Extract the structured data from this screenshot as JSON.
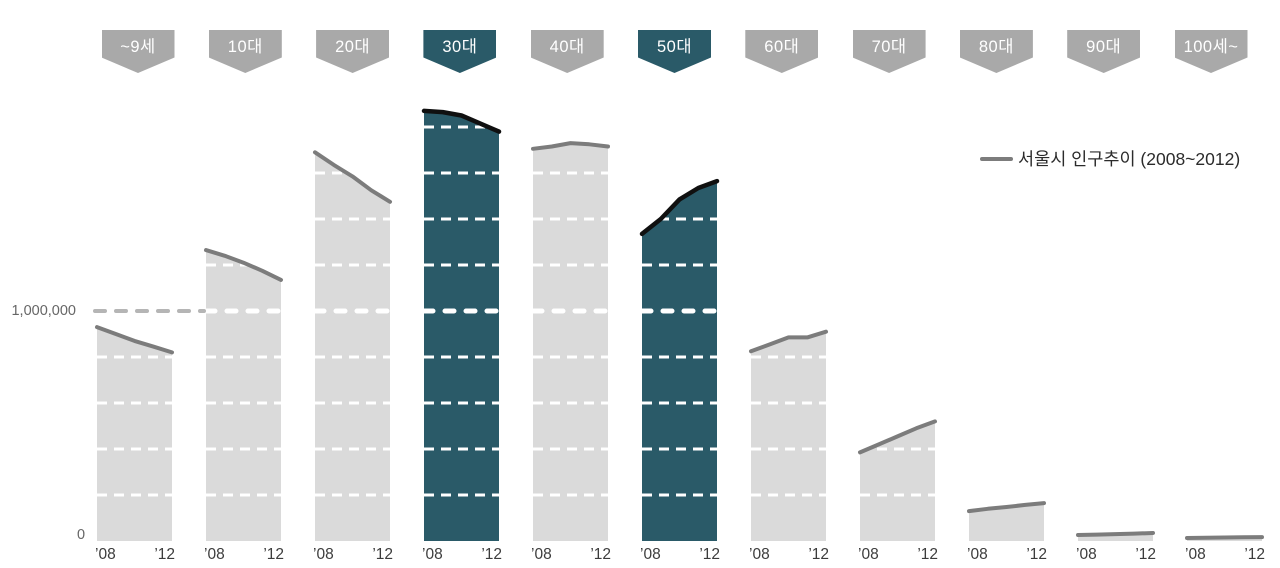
{
  "legend": {
    "label": "서울시 인구추이 (2008~2012)"
  },
  "y_axis": {
    "million_label": "1,000,000",
    "zero_label": "0"
  },
  "x_axis": {
    "first_tick": "’08",
    "last_tick": "’12"
  },
  "chart_data": {
    "type": "area",
    "title": "서울시 인구추이 (2008~2012)",
    "x": [
      "2008",
      "2009",
      "2010",
      "2011",
      "2012"
    ],
    "x_tick_labels_shown": [
      "’08",
      "’12"
    ],
    "y_tick_labels_shown": [
      "0",
      "1,000,000"
    ],
    "ylim": [
      0,
      1900000
    ],
    "gridline_interval": 200000,
    "emphasized_gridline": 1000000,
    "grid": "white dashed lines inside bars only; gray dashed 1,000,000 reference at far left",
    "legend_position": "right, above 60대 bar",
    "series": [
      {
        "name": "~9세",
        "highlighted": false,
        "values": [
          930000,
          900000,
          870000,
          845000,
          820000
        ]
      },
      {
        "name": "10대",
        "highlighted": false,
        "values": [
          1265000,
          1240000,
          1210000,
          1175000,
          1135000
        ]
      },
      {
        "name": "20대",
        "highlighted": false,
        "values": [
          1690000,
          1635000,
          1585000,
          1525000,
          1475000
        ]
      },
      {
        "name": "30대",
        "highlighted": true,
        "values": [
          1870000,
          1865000,
          1850000,
          1815000,
          1780000
        ]
      },
      {
        "name": "40대",
        "highlighted": false,
        "values": [
          1705000,
          1715000,
          1730000,
          1725000,
          1715000
        ]
      },
      {
        "name": "50대",
        "highlighted": true,
        "values": [
          1335000,
          1400000,
          1485000,
          1535000,
          1565000
        ]
      },
      {
        "name": "60대",
        "highlighted": false,
        "values": [
          825000,
          855000,
          885000,
          885000,
          910000
        ]
      },
      {
        "name": "70대",
        "highlighted": false,
        "values": [
          385000,
          420000,
          455000,
          490000,
          520000
        ]
      },
      {
        "name": "80대",
        "highlighted": false,
        "values": [
          130000,
          140000,
          148000,
          157000,
          165000
        ]
      },
      {
        "name": "90대",
        "highlighted": false,
        "values": [
          26000,
          28000,
          30000,
          32000,
          35000
        ]
      },
      {
        "name": "100세~",
        "highlighted": false,
        "values": [
          13000,
          14000,
          15000,
          16000,
          17000
        ]
      }
    ]
  },
  "colors": {
    "accent_teal": "#2A5A68",
    "bar_gray": "#DADADA",
    "tag_gray": "#A9A9A9",
    "trend_line_gray": "#7C7C7C",
    "trend_line_dark": "#101010",
    "gridline_white": "#FFFFFF",
    "gridline_gray": "#B5B5B5",
    "tick_text": "#3C3C3C",
    "axis_text": "#666666",
    "legend_text": "#2B2B2B",
    "background": "#FFFFFF"
  }
}
